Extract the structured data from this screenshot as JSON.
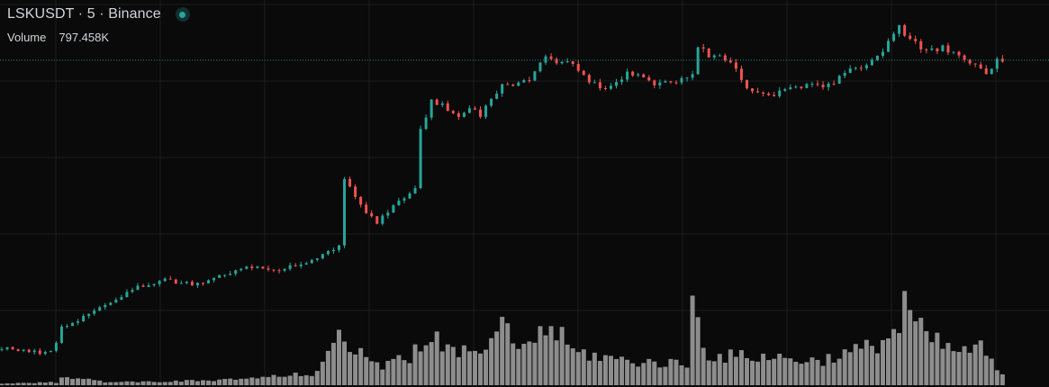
{
  "legend": {
    "symbol": "LSKUSDT",
    "interval": "5",
    "exchange": "Binance",
    "title": "LSKUSDT · 5 · Binance",
    "volume_label": "Volume",
    "volume_value": "797.458K"
  },
  "colors": {
    "background": "#0a0a0a",
    "grid": "#1c1c1c",
    "up": "#26a69a",
    "down": "#ef5350",
    "volume": "#8d8d8d",
    "price_line": "#26a69a",
    "status": "#26a69a"
  },
  "chart_data": {
    "type": "candlestick",
    "title": "LSKUSDT · 5 · Binance",
    "bars": 185,
    "price_scale_visible": false,
    "time_scale_visible": false,
    "grid": true,
    "last_price_line": "dotted",
    "close_path_keypoints": [
      [
        0,
        1.021
      ],
      [
        8,
        1.011
      ],
      [
        10,
        1.026
      ],
      [
        11,
        1.052
      ],
      [
        15,
        1.069
      ],
      [
        20,
        1.093
      ],
      [
        25,
        1.115
      ],
      [
        30,
        1.128
      ],
      [
        35,
        1.119
      ],
      [
        40,
        1.133
      ],
      [
        45,
        1.146
      ],
      [
        50,
        1.142
      ],
      [
        55,
        1.152
      ],
      [
        58,
        1.159
      ],
      [
        62,
        1.183
      ],
      [
        63,
        1.283
      ],
      [
        64,
        1.274
      ],
      [
        67,
        1.233
      ],
      [
        69,
        1.216
      ],
      [
        72,
        1.241
      ],
      [
        76,
        1.27
      ],
      [
        77,
        1.36
      ],
      [
        79,
        1.409
      ],
      [
        80,
        1.405
      ],
      [
        82,
        1.395
      ],
      [
        84,
        1.385
      ],
      [
        86,
        1.398
      ],
      [
        88,
        1.386
      ],
      [
        90,
        1.411
      ],
      [
        92,
        1.434
      ],
      [
        94,
        1.43
      ],
      [
        97,
        1.443
      ],
      [
        100,
        1.476
      ],
      [
        102,
        1.465
      ],
      [
        103,
        1.473
      ],
      [
        106,
        1.456
      ],
      [
        108,
        1.437
      ],
      [
        110,
        1.428
      ],
      [
        112,
        1.433
      ],
      [
        115,
        1.449
      ],
      [
        118,
        1.446
      ],
      [
        120,
        1.432
      ],
      [
        124,
        1.439
      ],
      [
        127,
        1.447
      ],
      [
        128,
        1.492
      ],
      [
        130,
        1.479
      ],
      [
        132,
        1.482
      ],
      [
        135,
        1.457
      ],
      [
        137,
        1.428
      ],
      [
        139,
        1.418
      ],
      [
        142,
        1.416
      ],
      [
        146,
        1.432
      ],
      [
        150,
        1.429
      ],
      [
        153,
        1.438
      ],
      [
        156,
        1.456
      ],
      [
        159,
        1.466
      ],
      [
        162,
        1.484
      ],
      [
        165,
        1.524
      ],
      [
        167,
        1.503
      ],
      [
        170,
        1.484
      ],
      [
        173,
        1.49
      ],
      [
        176,
        1.477
      ],
      [
        179,
        1.462
      ],
      [
        181,
        1.451
      ],
      [
        183,
        1.471
      ]
    ],
    "volume_path_keypoints": [
      [
        0,
        0.015
      ],
      [
        10,
        0.03
      ],
      [
        11,
        0.1
      ],
      [
        20,
        0.03
      ],
      [
        40,
        0.05
      ],
      [
        58,
        0.12
      ],
      [
        62,
        0.55
      ],
      [
        64,
        0.45
      ],
      [
        66,
        0.38
      ],
      [
        70,
        0.18
      ],
      [
        75,
        0.3
      ],
      [
        77,
        0.45
      ],
      [
        78,
        0.54
      ],
      [
        80,
        0.45
      ],
      [
        83,
        0.32
      ],
      [
        90,
        0.4
      ],
      [
        92,
        0.6
      ],
      [
        95,
        0.4
      ],
      [
        100,
        0.55
      ],
      [
        101,
        0.62
      ],
      [
        105,
        0.35
      ],
      [
        115,
        0.25
      ],
      [
        126,
        0.22
      ],
      [
        127,
        0.83
      ],
      [
        128,
        0.7
      ],
      [
        130,
        0.3
      ],
      [
        140,
        0.3
      ],
      [
        150,
        0.25
      ],
      [
        160,
        0.4
      ],
      [
        165,
        0.58
      ],
      [
        166,
        1.0
      ],
      [
        167,
        0.7
      ],
      [
        170,
        0.5
      ],
      [
        175,
        0.35
      ],
      [
        180,
        0.38
      ],
      [
        184,
        0.1
      ]
    ],
    "last_price_level": 1.471,
    "price_range": [
      0.99,
      1.54
    ],
    "volume_max": 797458
  }
}
